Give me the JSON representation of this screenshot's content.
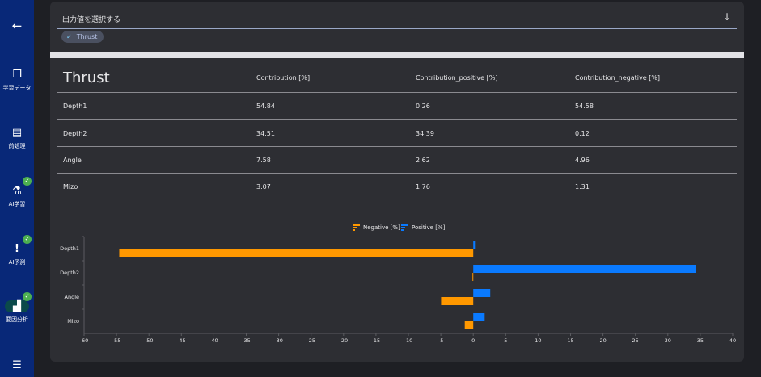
{
  "sidebar": {
    "back_icon": "arrow-left-icon",
    "items": [
      {
        "label": "学習データ",
        "icon": "files-icon",
        "done": false
      },
      {
        "label": "前処理",
        "icon": "document-icon",
        "done": false
      },
      {
        "label": "AI学習",
        "icon": "flask-icon",
        "done": true
      },
      {
        "label": "AI予測",
        "icon": "exclamation-icon",
        "done": true
      },
      {
        "label": "要因分析",
        "icon": "bar-chart-icon",
        "done": true,
        "active": true
      },
      {
        "label": "",
        "icon": "sliders-icon",
        "done": false
      }
    ]
  },
  "selector": {
    "title": "出力値を選択する",
    "chip": "Thrust"
  },
  "table": {
    "title": "Thrust",
    "headers": [
      "Contribution [%]",
      "Contribution_positive [%]",
      "Contribution_negative [%]"
    ],
    "rows": [
      [
        "Depth1",
        "54.84",
        "0.26",
        "54.58"
      ],
      [
        "Depth2",
        "34.51",
        "34.39",
        "0.12"
      ],
      [
        "Angle",
        "7.58",
        "2.62",
        "4.96"
      ],
      [
        "Mizo",
        "3.07",
        "1.76",
        "1.31"
      ]
    ]
  },
  "colors": {
    "negative": "#ff9800",
    "positive": "#0a7aff",
    "sidebar": "#082878"
  },
  "chart_data": {
    "type": "bar",
    "orientation": "horizontal",
    "categories": [
      "Depth1",
      "Depth2",
      "Angle",
      "Mizo"
    ],
    "series": [
      {
        "name": "Negative [%]",
        "values": [
          -54.58,
          -0.12,
          -4.96,
          -1.31
        ]
      },
      {
        "name": "Positive [%]",
        "values": [
          0.26,
          34.39,
          2.62,
          1.76
        ]
      }
    ],
    "xlim": [
      -60,
      40
    ],
    "xticks": [
      -60,
      -55,
      -50,
      -45,
      -40,
      -35,
      -30,
      -25,
      -20,
      -15,
      -10,
      -5,
      0,
      5,
      10,
      15,
      20,
      25,
      30,
      35,
      40
    ],
    "legend": "top",
    "grid": false
  }
}
